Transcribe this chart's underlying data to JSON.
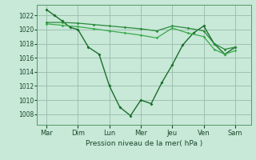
{
  "title": "",
  "xlabel": "Pression niveau de la mer( hPa )",
  "days": [
    "Mar",
    "Dim",
    "Lun",
    "Mer",
    "Jeu",
    "Ven",
    "Sam"
  ],
  "day_positions": [
    0,
    1,
    2,
    3,
    4,
    5,
    6
  ],
  "ylim": [
    1006.5,
    1023.5
  ],
  "yticks": [
    1008,
    1010,
    1012,
    1014,
    1016,
    1018,
    1020,
    1022
  ],
  "background_color": "#c8e8d8",
  "grid_color": "#99bbaa",
  "line_color1": "#1a6e2a",
  "line_color2": "#2a8a3a",
  "line_color3": "#3aaa4a",
  "line1_x": [
    0.0,
    0.25,
    0.5,
    0.75,
    1.0,
    1.33,
    1.67,
    2.0,
    2.33,
    2.67,
    3.0,
    3.33,
    3.67,
    4.0,
    4.33,
    4.67,
    5.0,
    5.33,
    5.67,
    6.0
  ],
  "line1_y": [
    1022.8,
    1022.0,
    1021.2,
    1020.3,
    1020.0,
    1017.5,
    1016.5,
    1012.0,
    1009.0,
    1007.8,
    1010.0,
    1009.5,
    1012.5,
    1015.0,
    1017.8,
    1019.5,
    1020.5,
    1018.0,
    1016.5,
    1017.5
  ],
  "line2_x": [
    0.0,
    0.5,
    1.0,
    1.5,
    2.0,
    2.5,
    3.0,
    3.5,
    4.0,
    4.5,
    5.0,
    5.33,
    5.67,
    6.0
  ],
  "line2_y": [
    1021.0,
    1021.0,
    1020.9,
    1020.7,
    1020.5,
    1020.3,
    1020.1,
    1019.8,
    1020.5,
    1020.2,
    1019.8,
    1018.0,
    1017.2,
    1017.5
  ],
  "line3_x": [
    0.0,
    0.5,
    1.0,
    1.5,
    2.0,
    2.5,
    3.0,
    3.5,
    4.0,
    4.5,
    5.0,
    5.33,
    5.67,
    6.0
  ],
  "line3_y": [
    1020.8,
    1020.6,
    1020.4,
    1020.1,
    1019.8,
    1019.5,
    1019.2,
    1018.8,
    1020.2,
    1019.5,
    1019.0,
    1017.2,
    1016.5,
    1017.0
  ]
}
